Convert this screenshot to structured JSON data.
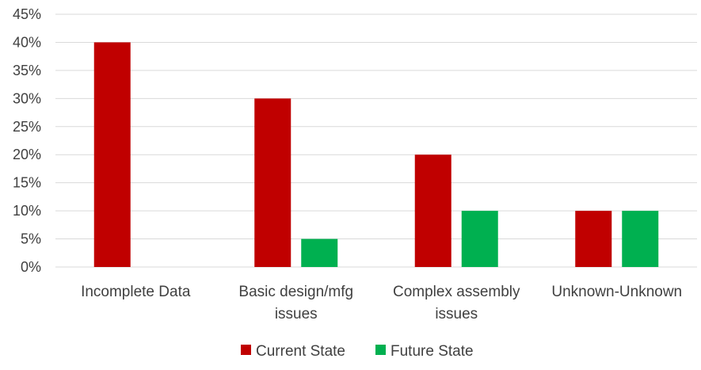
{
  "chart_data": {
    "type": "bar",
    "categories": [
      [
        "Incomplete Data"
      ],
      [
        "Basic design/mfg",
        "issues"
      ],
      [
        "Complex assembly",
        "issues"
      ],
      [
        "Unknown-Unknown"
      ]
    ],
    "series": [
      {
        "name": "Current State",
        "values": [
          40,
          30,
          20,
          10
        ],
        "color": "#C00000"
      },
      {
        "name": "Future State",
        "values": [
          0,
          5,
          10,
          10
        ],
        "color": "#00B050"
      }
    ],
    "ylim": [
      0,
      45
    ],
    "yticks": [
      "0%",
      "5%",
      "10%",
      "15%",
      "20%",
      "25%",
      "30%",
      "35%",
      "40%",
      "45%"
    ],
    "grid": true,
    "legend_position": "bottom"
  }
}
